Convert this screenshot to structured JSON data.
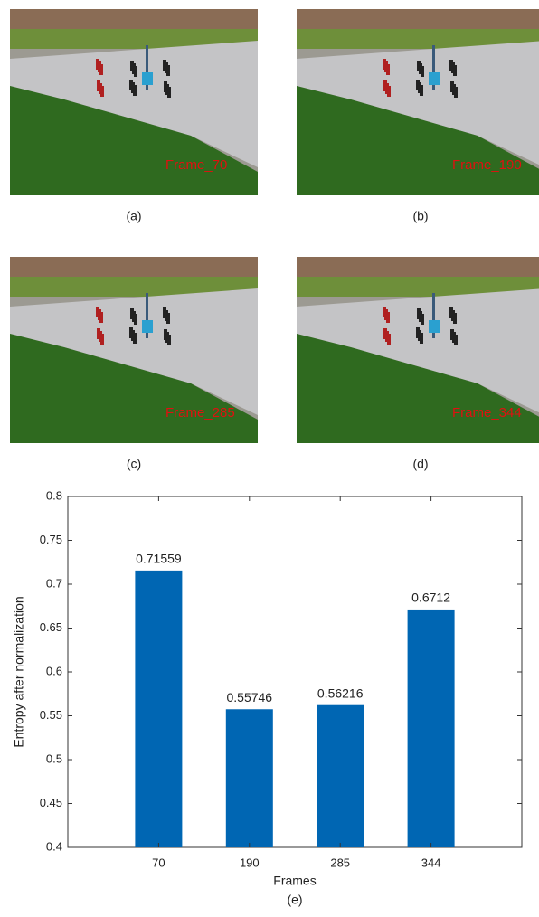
{
  "panels": [
    {
      "label": "(a)",
      "overlay": "Frame_70"
    },
    {
      "label": "(b)",
      "overlay": "Frame_190"
    },
    {
      "label": "(c)",
      "overlay": "Frame_285"
    },
    {
      "label": "(d)",
      "overlay": "Frame_344"
    }
  ],
  "chart_data": {
    "type": "bar",
    "caption": "(e)",
    "x_label": "Frames",
    "y_label": "Entropy after normalization",
    "categories": [
      "70",
      "190",
      "285",
      "344"
    ],
    "values": [
      0.71559,
      0.55746,
      0.56216,
      0.6712
    ],
    "color": "#0066b3",
    "ylim": [
      0.4,
      0.8
    ],
    "yticks": [
      0.4,
      0.45,
      0.5,
      0.55,
      0.6,
      0.65,
      0.7,
      0.75,
      0.8
    ]
  }
}
